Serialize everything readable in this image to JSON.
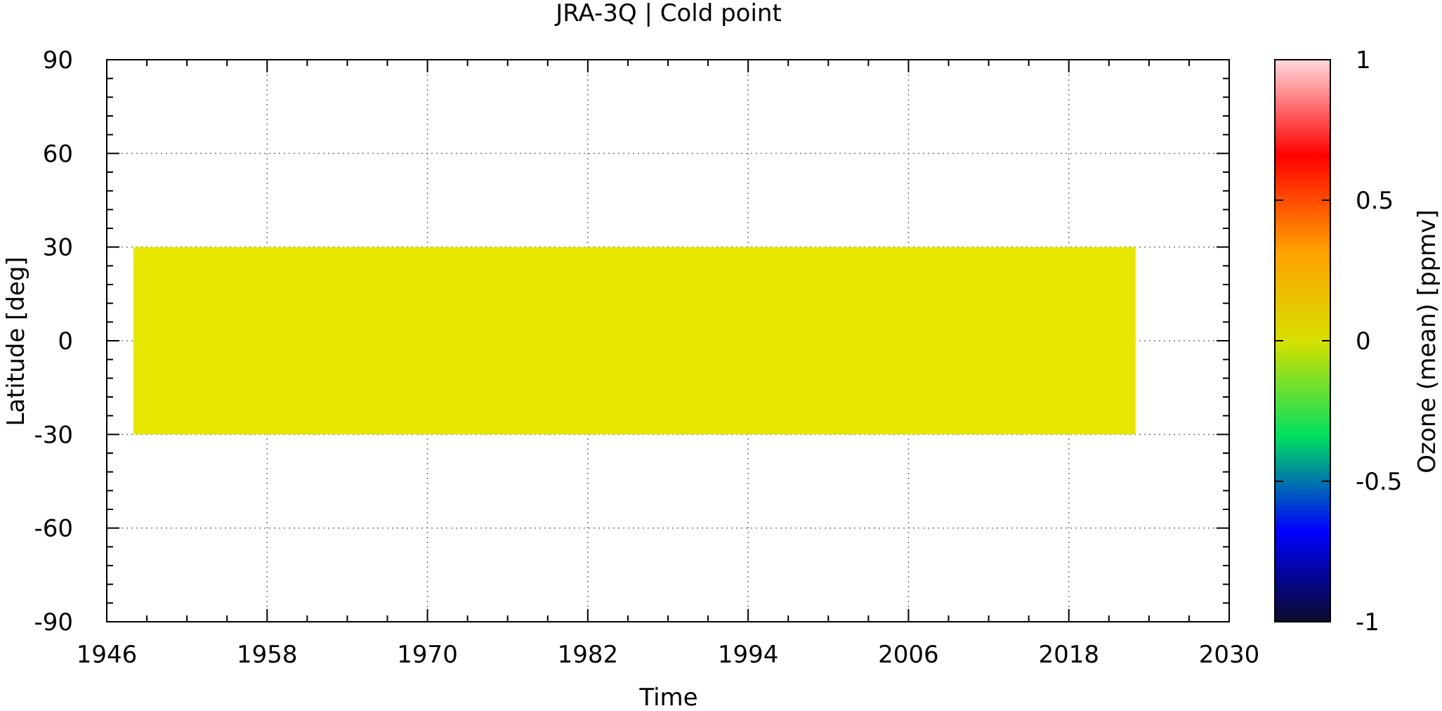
{
  "chart_data": {
    "type": "heatmap",
    "title": "JRA-3Q | Cold point",
    "xlabel": "Time",
    "ylabel": "Latitude [deg]",
    "xlim": [
      1946,
      2030
    ],
    "ylim": [
      -90,
      90
    ],
    "x_ticks": [
      "1946",
      "1958",
      "1970",
      "1982",
      "1994",
      "2006",
      "2018",
      "2030"
    ],
    "y_ticks": [
      "90",
      "60",
      "30",
      "0",
      "-30",
      "-60",
      "-90"
    ],
    "grid": true,
    "colorbar": {
      "label": "Ozone (mean) [ppmv]",
      "range": [
        -1,
        1
      ],
      "ticks": [
        "1",
        "0.5",
        "0",
        "-0.5",
        "-1"
      ],
      "colors": [
        "#0a0a2a",
        "#0000ff",
        "#00e060",
        "#d8e000",
        "#ffa000",
        "#ff0000",
        "#ffd8dc"
      ]
    },
    "data_region": {
      "x_start": 1948,
      "x_end": 2023,
      "lat_min": -30,
      "lat_max": 30,
      "value": 0.03,
      "color": "#e6e600"
    }
  }
}
